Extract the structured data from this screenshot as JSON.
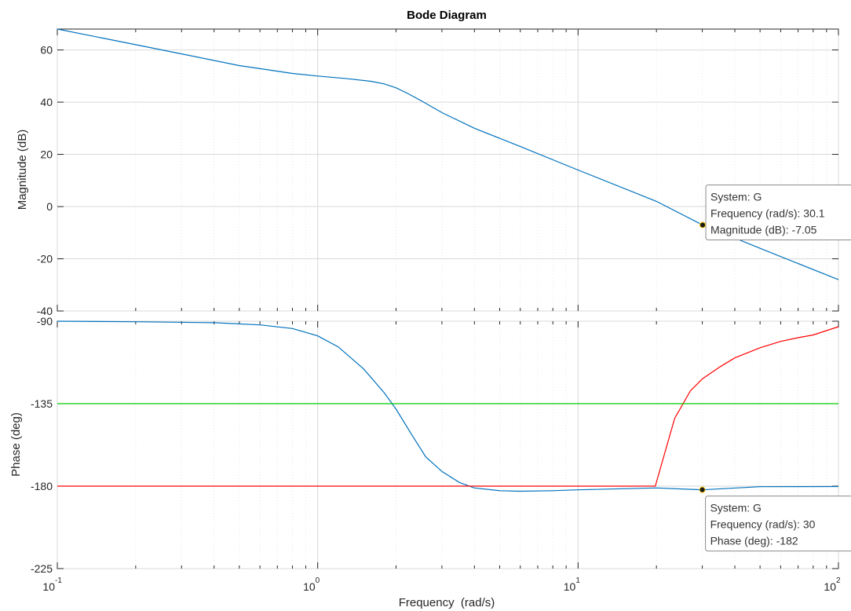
{
  "chart_data": {
    "type": "line",
    "title": "Bode Diagram",
    "xlabel": "Frequency  (rad/s)",
    "xscale": "log",
    "xlim": [
      0.1,
      100
    ],
    "x_ticks": [
      {
        "base": "10",
        "exp": "-1",
        "value": 0.1
      },
      {
        "base": "10",
        "exp": "0",
        "value": 1
      },
      {
        "base": "10",
        "exp": "1",
        "value": 10
      },
      {
        "base": "10",
        "exp": "2",
        "value": 100
      }
    ],
    "grid": true,
    "panels": [
      {
        "name": "magnitude",
        "ylabel": "Magnitude (dB)",
        "ylim": [
          -40,
          68
        ],
        "yticks": [
          -40,
          -20,
          0,
          20,
          40,
          60
        ],
        "series": [
          {
            "name": "G",
            "color": "#0072bd",
            "x": [
              0.1,
              0.15,
              0.2,
              0.3,
              0.5,
              0.8,
              1.0,
              1.3,
              1.6,
              1.8,
              2.0,
              2.2,
              2.5,
              3.0,
              4.0,
              6.0,
              10.0,
              20.0,
              30.1,
              50.0,
              100.0
            ],
            "y": [
              68,
              64.5,
              62,
              58.5,
              54,
              51,
              50,
              49,
              48,
              47,
              45.5,
              43.5,
              40.5,
              36,
              30,
              23,
              14,
              2,
              -7.05,
              -16,
              -28
            ]
          }
        ]
      },
      {
        "name": "phase",
        "ylabel": "Phase (deg)",
        "ylim": [
          -225,
          -90
        ],
        "yticks": [
          -225,
          -180,
          -135,
          -90
        ],
        "series": [
          {
            "name": "G",
            "color": "#0072bd",
            "x": [
              0.1,
              0.2,
              0.4,
              0.6,
              0.8,
              1.0,
              1.2,
              1.5,
              1.8,
              2.0,
              2.3,
              2.6,
              3.0,
              3.5,
              4.0,
              5.0,
              6.0,
              8.0,
              10.0,
              20.0,
              30.0,
              50.0,
              100.0
            ],
            "y": [
              -90,
              -90.3,
              -90.8,
              -92,
              -94,
              -98,
              -104,
              -116,
              -129,
              -138,
              -152,
              -164,
              -172,
              -178,
              -181,
              -182.5,
              -182.8,
              -182.5,
              -182,
              -181,
              -182,
              -180.3,
              -180.2
            ]
          },
          {
            "name": "red",
            "color": "#ff0000",
            "x": [
              0.1,
              19.8,
              23.5,
              27,
              30,
              35,
              40,
              50,
              60,
              70,
              80,
              100
            ],
            "y": [
              -180,
              -180,
              -143,
              -128,
              -121.5,
              -115,
              -110,
              -104.5,
              -101,
              -99,
              -97.5,
              -93
            ]
          },
          {
            "name": "green",
            "color": "#00cc00",
            "x": [
              0.1,
              100
            ],
            "y": [
              -135,
              -135
            ]
          }
        ]
      }
    ],
    "datatips": [
      {
        "panel": "magnitude",
        "x": 30.1,
        "y": -7.05,
        "lines": [
          "System: G",
          "Frequency (rad/s): 30.1",
          "Magnitude (dB): -7.05"
        ]
      },
      {
        "panel": "phase",
        "x": 30,
        "y": -182,
        "lines": [
          "System: G",
          "Frequency (rad/s): 30",
          "Phase (deg): -182"
        ]
      }
    ]
  }
}
